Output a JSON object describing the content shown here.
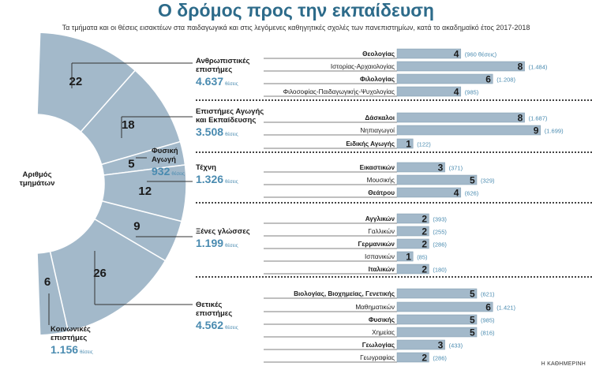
{
  "title": "Ο δρόμος προς την εκπαίδευση",
  "subtitle": "Τα τμήματα και οι θέσεις εισακτέων στα παιδαγωγικά και στις λεγόμενες καθηγητικές σχολές των πανεπιστημίων, κατά το ακαδημαϊκό έτος 2017-2018",
  "source": "Η ΚΑΘΗΜΕΡΙΝΗ",
  "colors": {
    "accent": "#4a8bb0",
    "bar": "#a3b9ca",
    "bar_edge": "#7f99ae",
    "title": "#2d6b8a"
  },
  "chart_data": [
    {
      "type": "donut",
      "title": "Αριθμός τμημάτων",
      "segments": [
        {
          "label": "Ανθρωπιστικές επιστήμες",
          "value": 22
        },
        {
          "label": "Επιστήμες Αγωγής και Εκπαίδευσης",
          "value": 18
        },
        {
          "label": "Φυσική Αγωγή",
          "value": 5
        },
        {
          "label": "Τέχνη",
          "value": 12
        },
        {
          "label": "Ξένες γλώσσες",
          "value": 9
        },
        {
          "label": "Θετικές επιστήμες",
          "value": 26
        },
        {
          "label": "Κοινωνικές επιστήμες",
          "value": 6
        }
      ]
    },
    {
      "type": "bar",
      "orientation": "horizontal",
      "value_meaning": "αριθμός τμημάτων (θέσεις εισακτέων σε παρένθεση)",
      "xlim": [
        0,
        9
      ],
      "groups": [
        {
          "category": "Ανθρωπιστικές επιστήμες",
          "seats": "4.637",
          "unit": "θέσεις",
          "items": [
            {
              "label": "Θεολογίας",
              "bold": true,
              "value": 4,
              "seats": "(960 θέσεις)"
            },
            {
              "label": "Ιστορίας-Αρχαιολογίας",
              "bold": false,
              "value": 8,
              "seats": "(1.484)"
            },
            {
              "label": "Φιλολογίας",
              "bold": true,
              "value": 6,
              "seats": "(1.208)"
            },
            {
              "label": "Φιλοσοφίας-Παιδαγωγικής-Ψυχολογίας",
              "bold": false,
              "value": 4,
              "seats": "(985)"
            }
          ]
        },
        {
          "category": "Επιστήμες Αγωγής και Εκπαίδευσης",
          "seats": "3.508",
          "unit": "θέσεις",
          "items": [
            {
              "label": "Δάσκαλοι",
              "bold": true,
              "value": 8,
              "seats": "(1.687)"
            },
            {
              "label": "Νηπιαγωγοί",
              "bold": false,
              "value": 9,
              "seats": "(1.699)"
            },
            {
              "label": "Ειδικής Αγωγής",
              "bold": true,
              "value": 1,
              "seats": "(122)"
            }
          ]
        },
        {
          "category": "Τέχνη",
          "seats": "1.326",
          "unit": "θέσεις",
          "items": [
            {
              "label": "Εικαστικών",
              "bold": true,
              "value": 3,
              "seats": "(371)"
            },
            {
              "label": "Μουσικής",
              "bold": false,
              "value": 5,
              "seats": "(329)"
            },
            {
              "label": "Θεάτρου",
              "bold": true,
              "value": 4,
              "seats": "(626)"
            }
          ]
        },
        {
          "category": "Ξένες γλώσσες",
          "seats": "1.199",
          "unit": "θέσεις",
          "items": [
            {
              "label": "Αγγλικών",
              "bold": true,
              "value": 2,
              "seats": "(393)"
            },
            {
              "label": "Γαλλικών",
              "bold": false,
              "value": 2,
              "seats": "(255)"
            },
            {
              "label": "Γερμανικών",
              "bold": true,
              "value": 2,
              "seats": "(286)"
            },
            {
              "label": "Ισπανικών",
              "bold": false,
              "value": 1,
              "seats": "(85)"
            },
            {
              "label": "Ιταλικών",
              "bold": true,
              "value": 2,
              "seats": "(180)"
            }
          ]
        },
        {
          "category": "Θετικές επιστήμες",
          "seats": "4.562",
          "unit": "θέσεις",
          "items": [
            {
              "label": "Βιολογίας, Βιοχημείας, Γενετικής",
              "bold": true,
              "value": 5,
              "seats": "(621)"
            },
            {
              "label": "Μαθηματικών",
              "bold": false,
              "value": 6,
              "seats": "(1.421)"
            },
            {
              "label": "Φυσικής",
              "bold": true,
              "value": 5,
              "seats": "(985)"
            },
            {
              "label": "Χημείας",
              "bold": false,
              "value": 5,
              "seats": "(816)"
            },
            {
              "label": "Γεωλογίας",
              "bold": true,
              "value": 3,
              "seats": "(433)"
            },
            {
              "label": "Γεωγραφίας",
              "bold": false,
              "value": 2,
              "seats": "(286)"
            }
          ]
        }
      ]
    }
  ],
  "left_labels": {
    "donut_title": "Αριθμός τμημάτων",
    "fysiki": {
      "name": "Φυσική Αγωγή",
      "seats": "932",
      "unit": "θέσεις"
    },
    "koinonikes": {
      "name": "Κοινωνικές επιστήμες",
      "seats": "1.156",
      "unit": "θέσεις"
    }
  }
}
